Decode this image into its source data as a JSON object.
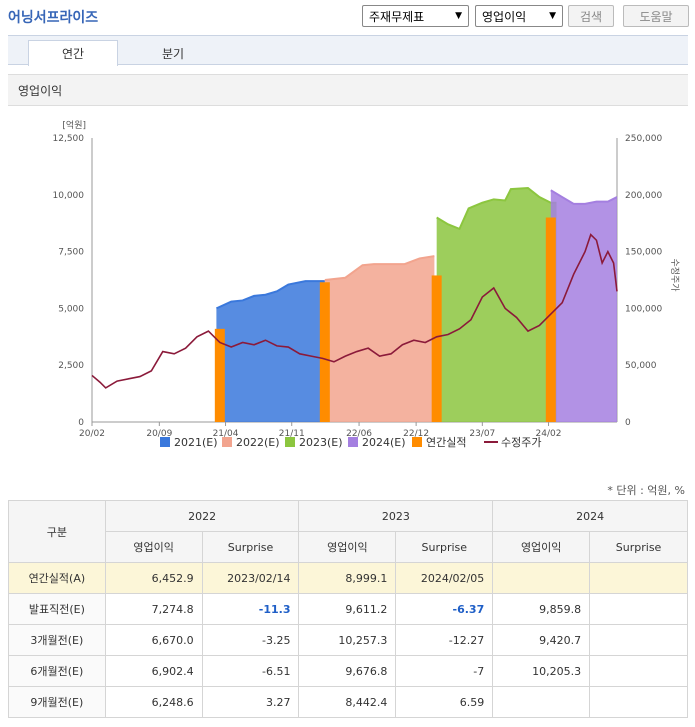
{
  "header": {
    "company": "어닝서프라이즈",
    "select_topic": "주재무제표",
    "select_metric": "영업이익",
    "search_label": "검색",
    "help_label": "도움말"
  },
  "tabs": [
    "연간",
    "분기"
  ],
  "section_title": "영업이익",
  "chart_data": {
    "type": "area",
    "left_axis": {
      "unit": "[억원]",
      "ticks": [
        "0",
        "2,500",
        "5,000",
        "7,500",
        "10,000",
        "12,500"
      ],
      "min": 0,
      "max": 12500
    },
    "right_axis": {
      "label": "수정주가",
      "ticks": [
        "0",
        "50,000",
        "100,000",
        "150,000",
        "200,000",
        "250,000"
      ],
      "min": 0,
      "max": 250000
    },
    "x_ticks": [
      "20/02",
      "20/09",
      "21/04",
      "21/11",
      "22/06",
      "22/12",
      "23/07",
      "24/02"
    ],
    "x_range": [
      "2020-02",
      "2024-09"
    ],
    "legend": [
      "2021(E)",
      "2022(E)",
      "2023(E)",
      "2024(E)",
      "연간실적",
      "수정주가"
    ],
    "colors": {
      "y2021": "#3a78dc",
      "y2022": "#f2a48e",
      "y2023": "#8cc63f",
      "y2024": "#a47fe0",
      "actual": "#ff8c00",
      "price": "#8b1a3a"
    },
    "estimate_series": [
      {
        "name": "2021(E)",
        "points": [
          [
            2021.17,
            5000
          ],
          [
            2021.3,
            5300
          ],
          [
            2021.4,
            5350
          ],
          [
            2021.5,
            5550
          ],
          [
            2021.6,
            5600
          ],
          [
            2021.7,
            5750
          ],
          [
            2021.8,
            6050
          ],
          [
            2021.95,
            6200
          ],
          [
            2022.12,
            6200
          ]
        ]
      },
      {
        "name": "2022(E)",
        "points": [
          [
            2022.12,
            6250
          ],
          [
            2022.3,
            6350
          ],
          [
            2022.45,
            6900
          ],
          [
            2022.55,
            6950
          ],
          [
            2022.7,
            6950
          ],
          [
            2022.82,
            6950
          ],
          [
            2022.95,
            7200
          ],
          [
            2023.08,
            7300
          ]
        ]
      },
      {
        "name": "2023(E)",
        "points": [
          [
            2023.1,
            9000
          ],
          [
            2023.2,
            8700
          ],
          [
            2023.3,
            8500
          ],
          [
            2023.38,
            9400
          ],
          [
            2023.5,
            9650
          ],
          [
            2023.6,
            9800
          ],
          [
            2023.7,
            9750
          ],
          [
            2023.75,
            10250
          ],
          [
            2023.9,
            10300
          ],
          [
            2024.0,
            9900
          ],
          [
            2024.1,
            9650
          ],
          [
            2024.15,
            9650
          ]
        ]
      },
      {
        "name": "2024(E)",
        "points": [
          [
            2024.1,
            10200
          ],
          [
            2024.2,
            9900
          ],
          [
            2024.3,
            9600
          ],
          [
            2024.4,
            9600
          ],
          [
            2024.5,
            9700
          ],
          [
            2024.6,
            9700
          ],
          [
            2024.68,
            9900
          ]
        ]
      }
    ],
    "actual_bars": [
      {
        "x": 2021.2,
        "value": 4100
      },
      {
        "x": 2022.12,
        "value": 6150
      },
      {
        "x": 2023.1,
        "value": 6450
      },
      {
        "x": 2024.1,
        "value": 9000
      }
    ],
    "price_series": [
      [
        2020.08,
        41000
      ],
      [
        2020.15,
        35000
      ],
      [
        2020.2,
        30000
      ],
      [
        2020.3,
        36000
      ],
      [
        2020.4,
        38000
      ],
      [
        2020.5,
        40000
      ],
      [
        2020.6,
        45000
      ],
      [
        2020.7,
        62000
      ],
      [
        2020.8,
        60000
      ],
      [
        2020.9,
        65000
      ],
      [
        2021.0,
        75000
      ],
      [
        2021.1,
        80000
      ],
      [
        2021.2,
        70000
      ],
      [
        2021.3,
        66000
      ],
      [
        2021.4,
        70000
      ],
      [
        2021.5,
        68000
      ],
      [
        2021.6,
        72000
      ],
      [
        2021.7,
        67000
      ],
      [
        2021.8,
        66000
      ],
      [
        2021.9,
        60000
      ],
      [
        2022.0,
        58000
      ],
      [
        2022.1,
        56000
      ],
      [
        2022.2,
        53000
      ],
      [
        2022.3,
        58000
      ],
      [
        2022.4,
        62000
      ],
      [
        2022.5,
        65000
      ],
      [
        2022.6,
        58000
      ],
      [
        2022.7,
        60000
      ],
      [
        2022.8,
        68000
      ],
      [
        2022.9,
        72000
      ],
      [
        2023.0,
        70000
      ],
      [
        2023.1,
        75000
      ],
      [
        2023.2,
        77000
      ],
      [
        2023.3,
        82000
      ],
      [
        2023.4,
        90000
      ],
      [
        2023.5,
        110000
      ],
      [
        2023.6,
        118000
      ],
      [
        2023.7,
        100000
      ],
      [
        2023.8,
        92000
      ],
      [
        2023.9,
        80000
      ],
      [
        2024.0,
        85000
      ],
      [
        2024.1,
        95000
      ],
      [
        2024.2,
        105000
      ],
      [
        2024.3,
        130000
      ],
      [
        2024.4,
        150000
      ],
      [
        2024.45,
        165000
      ],
      [
        2024.5,
        160000
      ],
      [
        2024.55,
        140000
      ],
      [
        2024.6,
        150000
      ],
      [
        2024.65,
        140000
      ],
      [
        2024.68,
        115000
      ]
    ]
  },
  "unit_note": "* 단위 : 억원, %",
  "table": {
    "header_row1": [
      "구분",
      "2022",
      "2023",
      "2024"
    ],
    "header_row2": [
      "영업이익",
      "Surprise",
      "영업이익",
      "Surprise",
      "영업이익",
      "Surprise"
    ],
    "rows": [
      {
        "label": "연간실적(A)",
        "cells": [
          "6,452.9",
          "2023/02/14",
          "8,999.1",
          "2024/02/05",
          "",
          ""
        ]
      },
      {
        "label": "발표직전(E)",
        "cells": [
          "7,274.8",
          "-11.3",
          "9,611.2",
          "-6.37",
          "9,859.8",
          ""
        ]
      },
      {
        "label": "3개월전(E)",
        "cells": [
          "6,670.0",
          "-3.25",
          "10,257.3",
          "-12.27",
          "9,420.7",
          ""
        ]
      },
      {
        "label": "6개월전(E)",
        "cells": [
          "6,902.4",
          "-6.51",
          "9,676.8",
          "-7",
          "10,205.3",
          ""
        ]
      },
      {
        "label": "9개월전(E)",
        "cells": [
          "6,248.6",
          "3.27",
          "8,442.4",
          "6.59",
          "",
          ""
        ]
      }
    ]
  }
}
